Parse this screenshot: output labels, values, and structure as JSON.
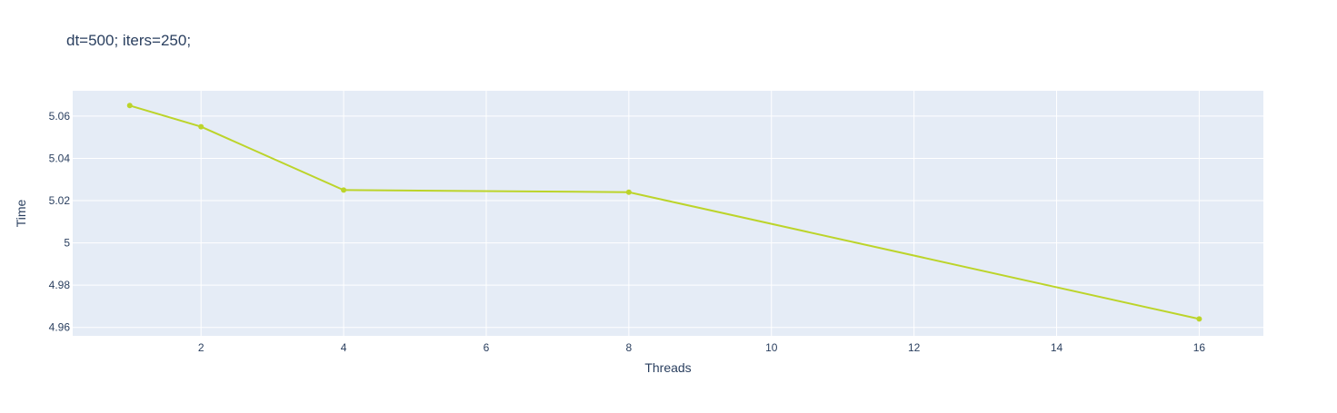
{
  "chart_data": {
    "type": "line",
    "title": "dt=500; iters=250;",
    "xlabel": "Threads",
    "ylabel": "Time",
    "x": [
      1,
      2,
      4,
      8,
      16
    ],
    "series": [
      {
        "values": [
          5.065,
          5.055,
          5.025,
          5.024,
          4.964
        ]
      }
    ],
    "xlim": [
      0.2,
      16.9
    ],
    "ylim": [
      4.956,
      5.072
    ],
    "xticks": [
      2,
      4,
      6,
      8,
      10,
      12,
      14,
      16
    ],
    "xtick_labels": [
      "2",
      "4",
      "6",
      "8",
      "10",
      "12",
      "14",
      "16"
    ],
    "yticks": [
      4.96,
      4.98,
      5.0,
      5.02,
      5.04,
      5.06
    ],
    "ytick_labels": [
      "4.96",
      "4.98",
      "5",
      "5.02",
      "5.04",
      "5.06"
    ],
    "grid": true,
    "colors": {
      "line": "#bcd42a",
      "plot_bg": "#e5ecf6",
      "grid": "#ffffff",
      "text": "#2a3f5f"
    }
  }
}
